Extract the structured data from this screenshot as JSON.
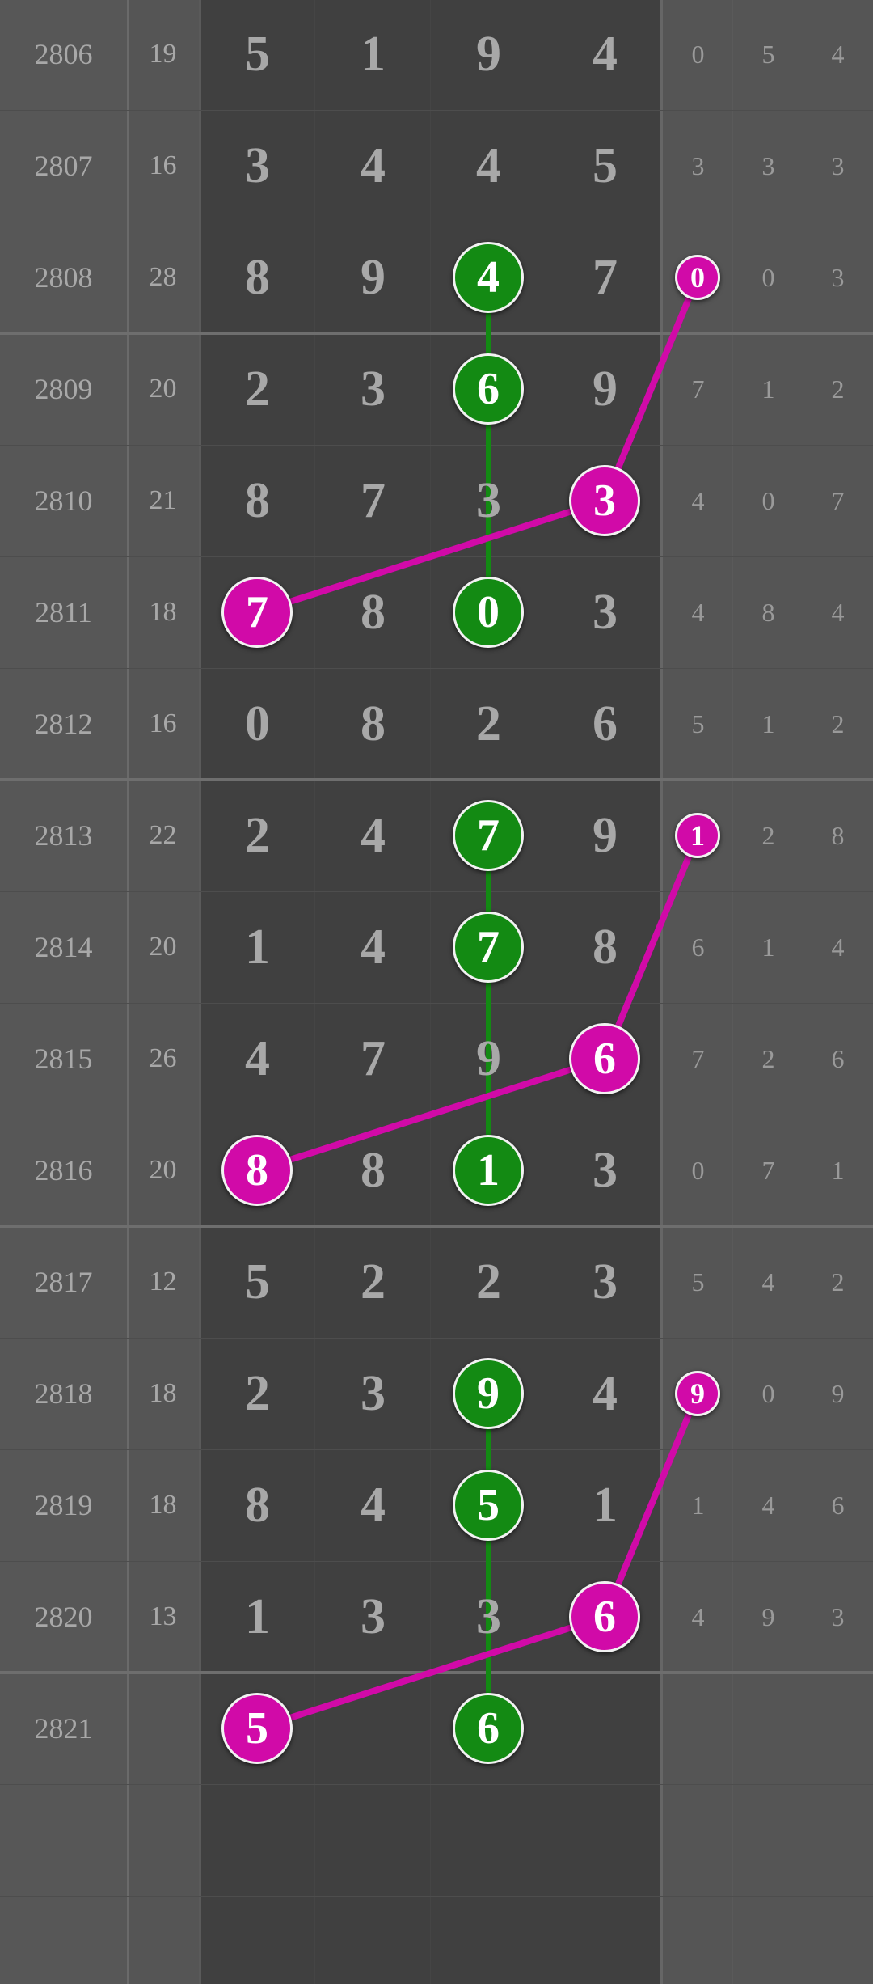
{
  "colors": {
    "green": "#138a13",
    "magenta": "#d10aa8",
    "text": "#a8a8a8",
    "main_bg": "#404040",
    "side_bg": "#555555"
  },
  "rows": [
    {
      "issue": "2806",
      "sum": "19",
      "main": [
        "5",
        "1",
        "9",
        "4"
      ],
      "side": [
        "0",
        "5",
        "4"
      ]
    },
    {
      "issue": "2807",
      "sum": "16",
      "main": [
        "3",
        "4",
        "4",
        "5"
      ],
      "side": [
        "3",
        "3",
        "3"
      ]
    },
    {
      "issue": "2808",
      "sum": "28",
      "main": [
        "8",
        "9",
        "4",
        "7"
      ],
      "side": [
        "0",
        "0",
        "3"
      ]
    },
    {
      "issue": "2809",
      "sum": "20",
      "main": [
        "2",
        "3",
        "6",
        "9"
      ],
      "side": [
        "7",
        "1",
        "2"
      ]
    },
    {
      "issue": "2810",
      "sum": "21",
      "main": [
        "8",
        "7",
        "3",
        "3"
      ],
      "side": [
        "4",
        "0",
        "7"
      ]
    },
    {
      "issue": "2811",
      "sum": "18",
      "main": [
        "7",
        "8",
        "0",
        "3"
      ],
      "side": [
        "4",
        "8",
        "4"
      ]
    },
    {
      "issue": "2812",
      "sum": "16",
      "main": [
        "0",
        "8",
        "2",
        "6"
      ],
      "side": [
        "5",
        "1",
        "2"
      ]
    },
    {
      "issue": "2813",
      "sum": "22",
      "main": [
        "2",
        "4",
        "7",
        "9"
      ],
      "side": [
        "1",
        "2",
        "8"
      ]
    },
    {
      "issue": "2814",
      "sum": "20",
      "main": [
        "1",
        "4",
        "7",
        "8"
      ],
      "side": [
        "6",
        "1",
        "4"
      ]
    },
    {
      "issue": "2815",
      "sum": "26",
      "main": [
        "4",
        "7",
        "9",
        "6"
      ],
      "side": [
        "7",
        "2",
        "6"
      ]
    },
    {
      "issue": "2816",
      "sum": "20",
      "main": [
        "8",
        "8",
        "1",
        "3"
      ],
      "side": [
        "0",
        "7",
        "1"
      ]
    },
    {
      "issue": "2817",
      "sum": "12",
      "main": [
        "5",
        "2",
        "2",
        "3"
      ],
      "side": [
        "5",
        "4",
        "2"
      ]
    },
    {
      "issue": "2818",
      "sum": "18",
      "main": [
        "2",
        "3",
        "9",
        "4"
      ],
      "side": [
        "9",
        "0",
        "9"
      ]
    },
    {
      "issue": "2819",
      "sum": "18",
      "main": [
        "8",
        "4",
        "5",
        "1"
      ],
      "side": [
        "1",
        "4",
        "6"
      ]
    },
    {
      "issue": "2820",
      "sum": "13",
      "main": [
        "1",
        "3",
        "3",
        "6"
      ],
      "side": [
        "4",
        "9",
        "3"
      ]
    },
    {
      "issue": "2821",
      "sum": "",
      "main": [
        "5",
        "",
        "6",
        ""
      ],
      "side": [
        "",
        "",
        ""
      ]
    }
  ],
  "green_chains": [
    [
      [
        2,
        "main",
        2
      ],
      [
        3,
        "main",
        2
      ],
      [
        5,
        "main",
        2
      ]
    ],
    [
      [
        7,
        "main",
        2
      ],
      [
        8,
        "main",
        2
      ],
      [
        10,
        "main",
        2
      ]
    ],
    [
      [
        12,
        "main",
        2
      ],
      [
        13,
        "main",
        2
      ],
      [
        15,
        "main",
        2
      ]
    ]
  ],
  "magenta_chains": [
    [
      [
        2,
        "side",
        0
      ],
      [
        4,
        "main",
        3
      ],
      [
        5,
        "main",
        0
      ]
    ],
    [
      [
        7,
        "side",
        0
      ],
      [
        9,
        "main",
        3
      ],
      [
        10,
        "main",
        0
      ]
    ],
    [
      [
        12,
        "side",
        0
      ],
      [
        14,
        "main",
        3
      ],
      [
        15,
        "main",
        0
      ]
    ]
  ]
}
